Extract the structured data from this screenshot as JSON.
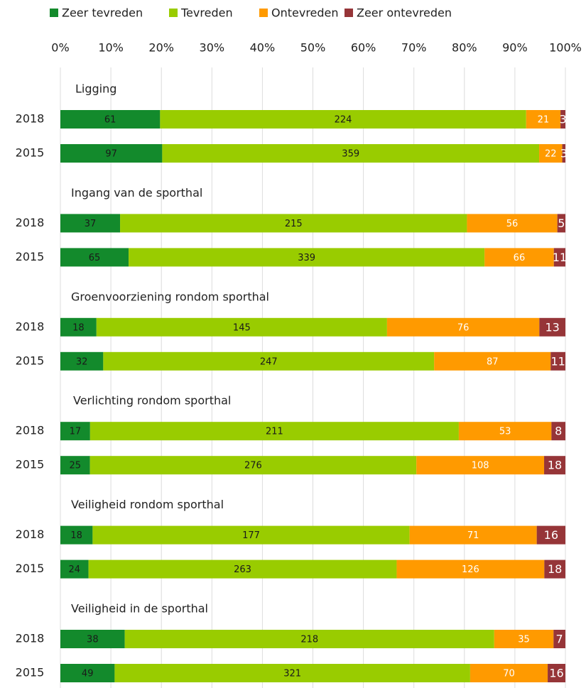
{
  "chart_data": {
    "type": "bar",
    "orientation": "horizontal",
    "stacked": "percent",
    "groups": [
      "Ligging",
      "Ingang van de sporthal",
      "Groenvoorziening rondom sporthal",
      "Verlichting rondom sporthal",
      "Veiligheid rondom sporthal",
      "Veiligheid in de sporthal"
    ],
    "categories": [
      "2018",
      "2015",
      "2018",
      "2015",
      "2018",
      "2015",
      "2018",
      "2015",
      "2018",
      "2015",
      "2018",
      "2015"
    ],
    "series": [
      {
        "name": "Zeer tevreden",
        "color": "#138a2c",
        "label_color": "#1a1a1a",
        "values": [
          61,
          97,
          37,
          65,
          18,
          32,
          17,
          25,
          18,
          24,
          38,
          49
        ]
      },
      {
        "name": "Tevreden",
        "color": "#99cc00",
        "label_color": "#1a1a1a",
        "values": [
          224,
          359,
          215,
          339,
          145,
          247,
          211,
          276,
          177,
          263,
          218,
          321
        ]
      },
      {
        "name": "Ontevreden",
        "color": "#ff9a00",
        "label_color": "#ffffff",
        "values": [
          21,
          22,
          56,
          66,
          76,
          87,
          53,
          108,
          71,
          126,
          35,
          70
        ]
      },
      {
        "name": "Zeer ontevreden",
        "color": "#963538",
        "label_color": "#ffffff",
        "values": [
          3,
          3,
          5,
          11,
          13,
          11,
          8,
          18,
          16,
          18,
          7,
          16
        ]
      }
    ],
    "xlim": [
      0,
      100
    ],
    "xticks": [
      {
        "value": 0,
        "label": "0%"
      },
      {
        "value": 10,
        "label": "10%"
      },
      {
        "value": 20,
        "label": "20%"
      },
      {
        "value": 30,
        "label": "30%"
      },
      {
        "value": 40,
        "label": "40%"
      },
      {
        "value": 50,
        "label": "50%"
      },
      {
        "value": 60,
        "label": "60%"
      },
      {
        "value": 70,
        "label": "70%"
      },
      {
        "value": 80,
        "label": "80%"
      },
      {
        "value": 90,
        "label": "90%"
      },
      {
        "value": 100,
        "label": "100%"
      }
    ],
    "grid": true,
    "legend": "top"
  }
}
